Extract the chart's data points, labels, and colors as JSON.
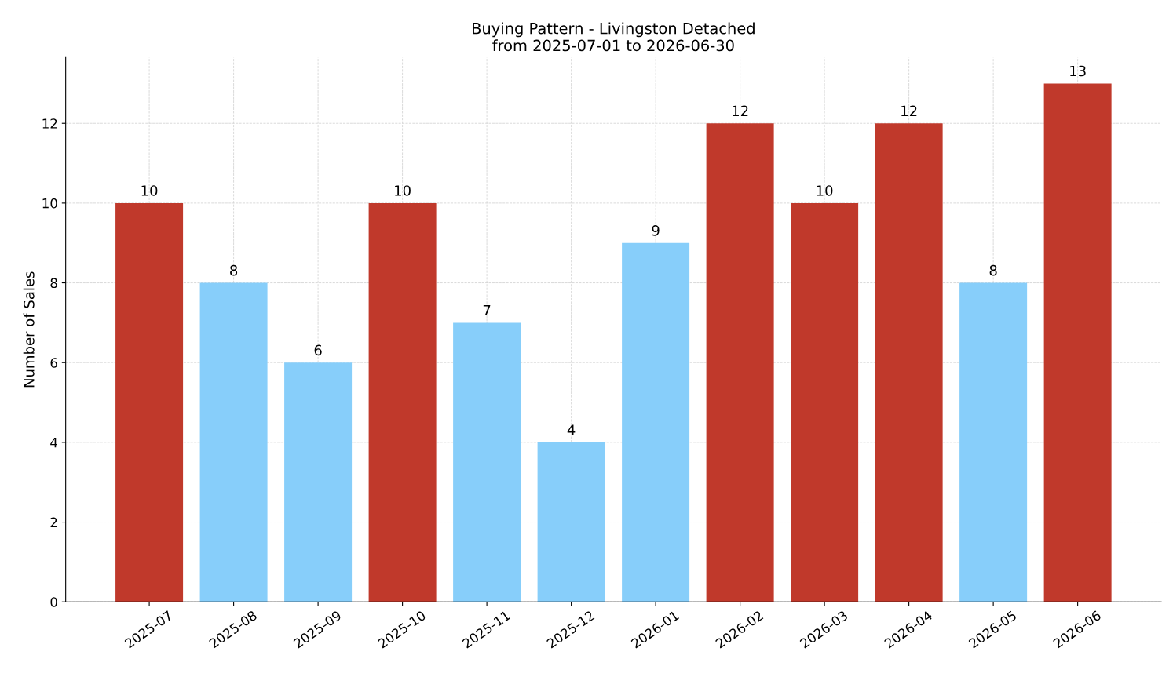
{
  "chart_data": {
    "type": "bar",
    "title": "Buying Pattern - Livingston Detached\nfrom 2025-07-01 to 2026-06-30",
    "ylabel": "Number of Sales",
    "categories": [
      "2025-07",
      "2025-08",
      "2025-09",
      "2025-10",
      "2025-11",
      "2025-12",
      "2026-01",
      "2026-02",
      "2026-03",
      "2026-04",
      "2026-05",
      "2026-06"
    ],
    "values": [
      10,
      8,
      6,
      10,
      7,
      4,
      9,
      12,
      10,
      12,
      8,
      13
    ],
    "colors": [
      "#c0392b",
      "#87cefa",
      "#87cefa",
      "#c0392b",
      "#87cefa",
      "#87cefa",
      "#87cefa",
      "#c0392b",
      "#c0392b",
      "#c0392b",
      "#87cefa",
      "#c0392b"
    ],
    "ylim": [
      0,
      13.65
    ],
    "yticks": [
      0,
      2,
      4,
      6,
      8,
      10,
      12
    ],
    "grid": true,
    "data_labels": true
  }
}
